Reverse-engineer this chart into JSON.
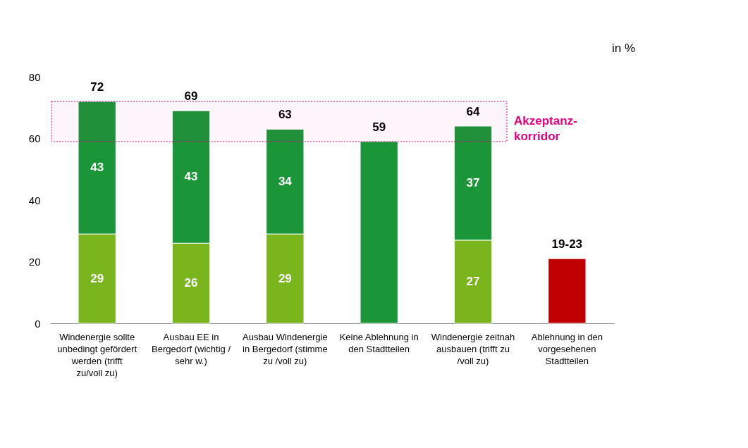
{
  "chart_data": {
    "type": "bar",
    "stacked": true,
    "categories": [
      "Windenergie sollte unbedingt gefördert werden (trifft zu/voll zu)",
      "Ausbau EE in Bergedorf (wichtig / sehr w.)",
      "Ausbau Windenergie in Bergedorf (stimme zu /voll zu)",
      "Keine Ablehnung in den Stadtteilen",
      "Windenergie zeitnah ausbauen (trifft zu /voll zu)",
      "Ablehnung in den vorgesehenen Stadtteilen"
    ],
    "series": [
      {
        "color": "#7ab51d",
        "values": [
          29,
          26,
          29,
          null,
          27,
          null
        ],
        "value_labels": [
          "29",
          "26",
          "29",
          null,
          "27",
          null
        ]
      },
      {
        "color": "#1a9639",
        "values": [
          43,
          43,
          34,
          59,
          37,
          null
        ],
        "value_labels": [
          "43",
          "43",
          "34",
          null,
          "37",
          null
        ]
      },
      {
        "color": "#c00000",
        "values": [
          null,
          null,
          null,
          null,
          null,
          21
        ]
      }
    ],
    "totals": [
      "72",
      "69",
      "63",
      "59",
      "64",
      "19-23"
    ],
    "ylim": [
      0,
      80
    ],
    "yticks": [
      0,
      20,
      40,
      60,
      80
    ],
    "grid": false,
    "legend": false,
    "bands": [
      {
        "axis": "y",
        "from": 59,
        "to": 72,
        "label": "Akzeptanz-korridor",
        "color": "#e6007e"
      }
    ],
    "annotations": [
      "in %"
    ]
  }
}
